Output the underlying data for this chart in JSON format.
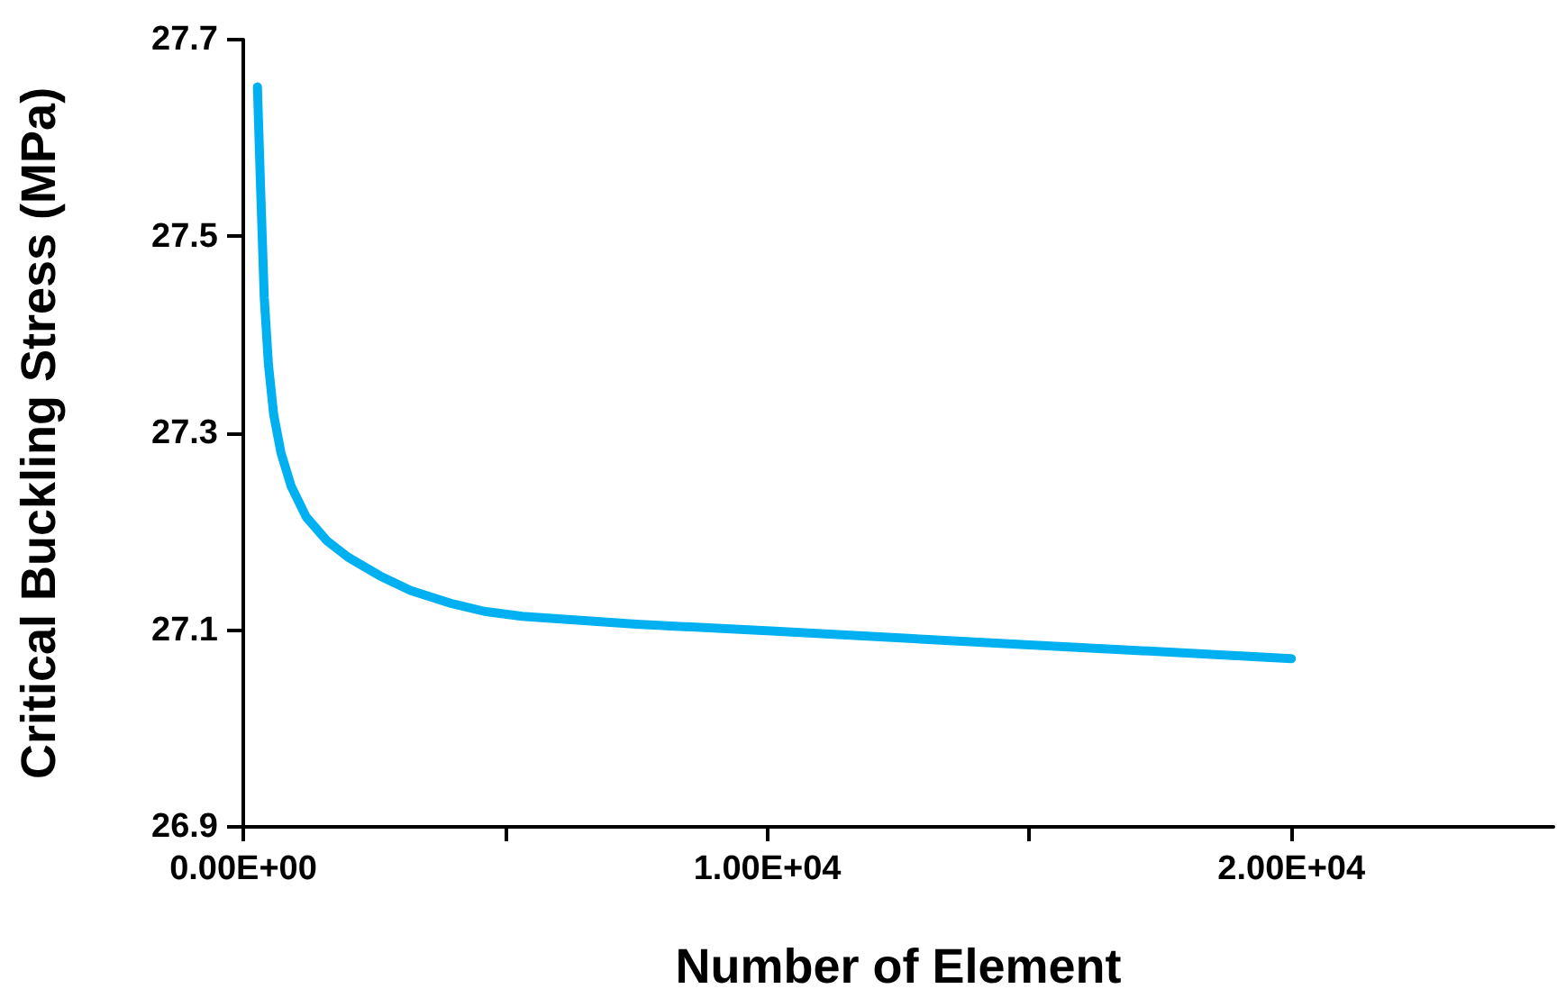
{
  "chart_data": {
    "type": "line",
    "xlabel": "Number of Element",
    "ylabel": "Critical Buckling Stress (MPa)",
    "x": [
      270,
      330,
      400,
      480,
      580,
      720,
      915,
      1200,
      1590,
      2000,
      2610,
      3200,
      3970,
      4600,
      5320,
      7500,
      10070,
      15000,
      20000
    ],
    "series": [
      {
        "color": "#00b0f0",
        "values": [
          27.652,
          27.55,
          27.438,
          27.37,
          27.319,
          27.28,
          27.246,
          27.215,
          27.191,
          27.174,
          27.155,
          27.14,
          27.127,
          27.119,
          27.114,
          27.106,
          27.099,
          27.085,
          27.071
        ]
      }
    ],
    "xlim": [
      0,
      25000
    ],
    "xticks": [
      {
        "value": 0,
        "label": "0.00E+00"
      },
      {
        "value": 5000,
        "label": null
      },
      {
        "value": 10000,
        "label": "1.00E+04"
      },
      {
        "value": 15000,
        "label": null
      },
      {
        "value": 20000,
        "label": "2.00E+04"
      }
    ],
    "ylim": [
      26.9,
      27.7
    ],
    "yticks": [
      26.9,
      27.1,
      27.3,
      27.5,
      27.7
    ],
    "grid": false,
    "marker": "none",
    "line_style": "solid"
  }
}
